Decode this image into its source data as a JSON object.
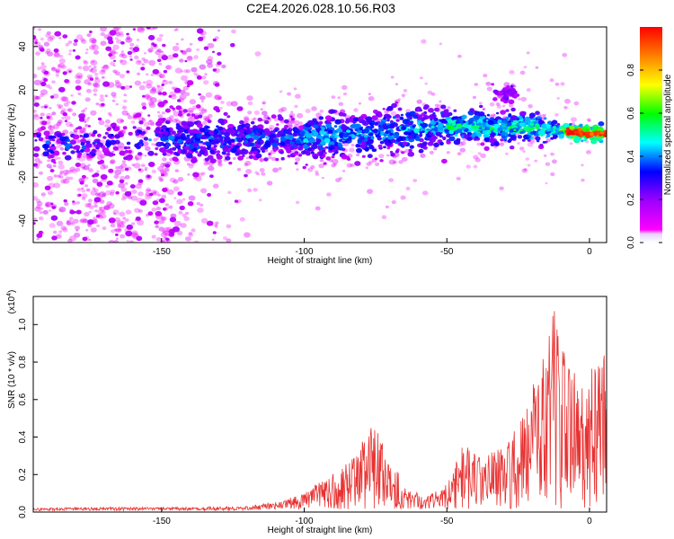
{
  "figure": {
    "title": "C2E4.2026.028.10.56.R03"
  },
  "chart_data": [
    {
      "type": "heatmap",
      "title": "C2E4.2026.028.10.56.R03",
      "xlabel": "Height of straight line (km)",
      "ylabel": "Frequency (Hz)",
      "xlim": [
        -195,
        6
      ],
      "ylim": [
        -50,
        49
      ],
      "xticks": [
        -150,
        -100,
        -50,
        0
      ],
      "yticks": [
        -40,
        -20,
        0,
        20,
        40
      ],
      "colorbar": {
        "label": "Normalized spectral amplitude",
        "range": [
          0,
          1
        ],
        "ticks": [
          0.0,
          0.2,
          0.4,
          0.6,
          0.8
        ]
      },
      "features": {
        "band_center_hz": [
          {
            "x": -180,
            "y": -5
          },
          {
            "x": -150,
            "y": -3
          },
          {
            "x": -100,
            "y": -2
          },
          {
            "x": -70,
            "y": 1
          },
          {
            "x": -50,
            "y": 3
          },
          {
            "x": -25,
            "y": 3
          },
          {
            "x": 0,
            "y": 0
          }
        ],
        "secondary_blob": {
          "x": -29,
          "y": 19
        },
        "peak_amplitude_region_km": [
          -10,
          5
        ]
      }
    },
    {
      "type": "line",
      "xlabel": "Height of straight line (km)",
      "ylabel": "SNR (10 * v/v)",
      "y_multiplier": "(x10^4)",
      "y_multiplier_base": "(x10",
      "y_multiplier_exp": "4",
      "y_multiplier_close": ")",
      "xlim": [
        -195,
        6
      ],
      "ylim": [
        0,
        1.15
      ],
      "xticks": [
        -150,
        -100,
        -50,
        0
      ],
      "yticks": [
        0.0,
        0.2,
        0.4,
        0.6,
        0.8,
        1.0
      ],
      "ytick_labels": [
        "0.0",
        "0.2",
        "0.4",
        "0.6",
        "0.8",
        "1.0"
      ],
      "series": [
        {
          "name": "SNR",
          "color": "#e83232",
          "envelope": [
            {
              "x": -195,
              "y": 0.02
            },
            {
              "x": -180,
              "y": 0.025
            },
            {
              "x": -160,
              "y": 0.025
            },
            {
              "x": -140,
              "y": 0.025
            },
            {
              "x": -120,
              "y": 0.03
            },
            {
              "x": -110,
              "y": 0.05
            },
            {
              "x": -100,
              "y": 0.1
            },
            {
              "x": -90,
              "y": 0.2
            },
            {
              "x": -82,
              "y": 0.3
            },
            {
              "x": -76,
              "y": 0.45
            },
            {
              "x": -70,
              "y": 0.3
            },
            {
              "x": -64,
              "y": 0.12
            },
            {
              "x": -57,
              "y": 0.08
            },
            {
              "x": -50,
              "y": 0.15
            },
            {
              "x": -44,
              "y": 0.35
            },
            {
              "x": -37,
              "y": 0.28
            },
            {
              "x": -30,
              "y": 0.35
            },
            {
              "x": -22,
              "y": 0.6
            },
            {
              "x": -17,
              "y": 0.75
            },
            {
              "x": -12,
              "y": 1.05
            },
            {
              "x": -8,
              "y": 0.8
            },
            {
              "x": -3,
              "y": 0.65
            },
            {
              "x": 2,
              "y": 0.8
            },
            {
              "x": 6,
              "y": 0.8
            }
          ]
        }
      ]
    }
  ],
  "colormap": [
    "#ff00ff",
    "#9d00ff",
    "#0000ff",
    "#00ffff",
    "#00ff00",
    "#ffff00",
    "#ff7f00",
    "#ff0000"
  ]
}
